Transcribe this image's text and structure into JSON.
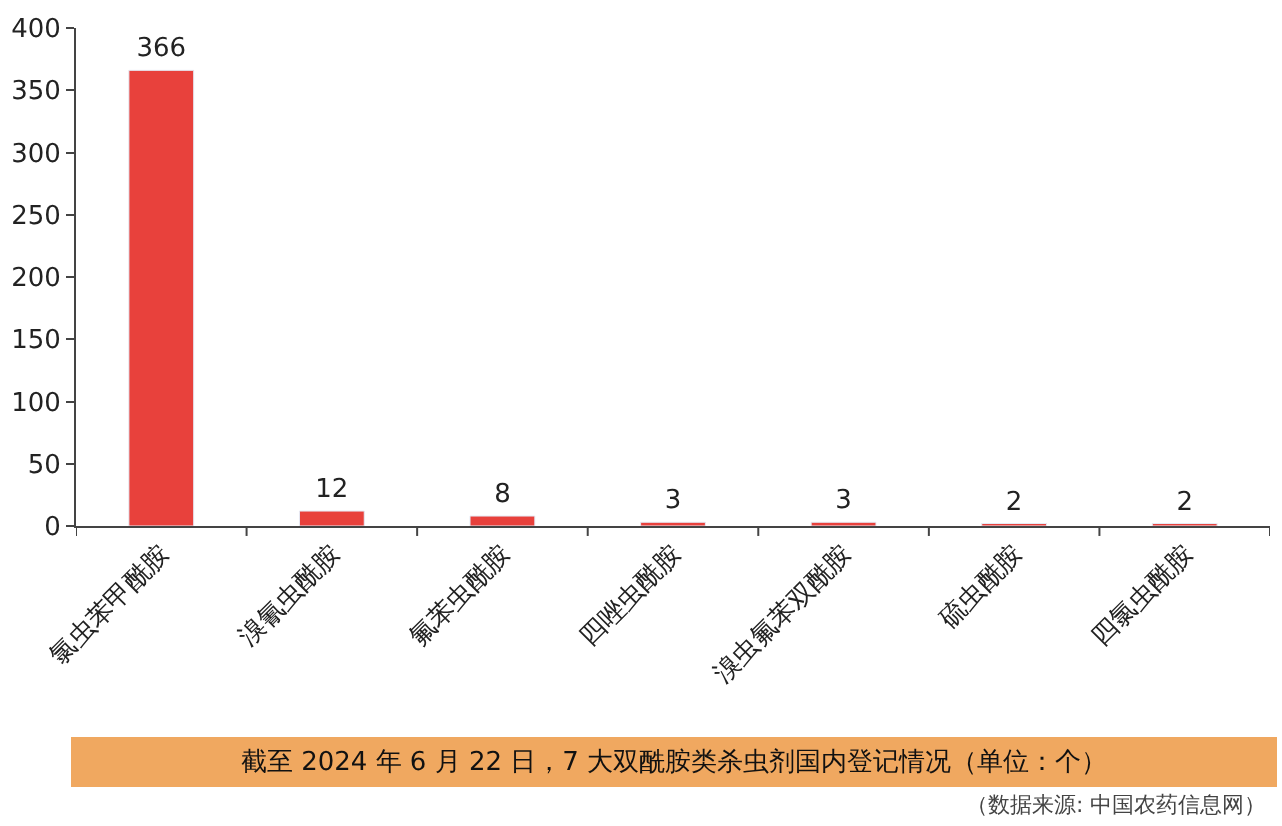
{
  "chart_data": {
    "type": "bar",
    "title": "截至 2024 年 6 月 22 日，7 大双酰胺类杀虫剂国内登记情况（单位：个）",
    "categories": [
      "氯虫苯甲酰胺",
      "溴氰虫酰胺",
      "氟苯虫酰胺",
      "四唑虫酰胺",
      "溴虫氟苯双酰胺",
      "硫虫酰胺",
      "四氯虫酰胺"
    ],
    "values": [
      366,
      12,
      8,
      3,
      3,
      2,
      2
    ],
    "color": "#e8413c",
    "ylim": [
      0,
      400
    ],
    "yticks": [
      0,
      50,
      100,
      150,
      200,
      250,
      300,
      350,
      400
    ],
    "data_labels": true,
    "legend": false,
    "annotations": [
      "（数据来源: 中国农药信息网）"
    ]
  }
}
